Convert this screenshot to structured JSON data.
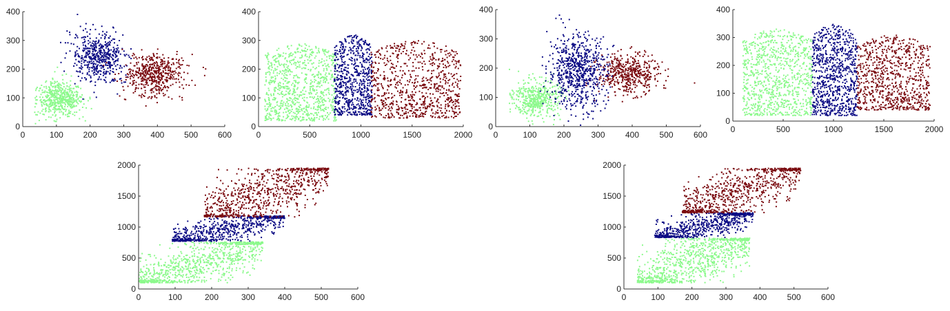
{
  "figure": {
    "background": "#ffffff"
  },
  "colors": {
    "green": "#8cf98c",
    "blue": "#0a0a84",
    "red": "#7a0a0f",
    "gray": "#c8d0c8"
  },
  "chart_data": [
    {
      "type": "scatter",
      "id": "c1",
      "xlim": [
        0,
        600
      ],
      "ylim": [
        0,
        400
      ],
      "xticks": [
        0,
        100,
        200,
        300,
        400,
        500,
        600
      ],
      "yticks": [
        0,
        100,
        200,
        300,
        400
      ],
      "clusters": [
        {
          "color": "green",
          "shape": "blob",
          "cx": 110,
          "cy": 95,
          "rx": 75,
          "ry": 65,
          "n": 520,
          "xmin": 35
        },
        {
          "color": "blue",
          "shape": "blob",
          "cx": 225,
          "cy": 240,
          "rx": 90,
          "ry": 95,
          "n": 520
        },
        {
          "color": "red",
          "shape": "blob",
          "cx": 390,
          "cy": 180,
          "rx": 100,
          "ry": 80,
          "n": 520
        }
      ]
    },
    {
      "type": "scatter",
      "id": "c2",
      "xlim": [
        0,
        2000
      ],
      "ylim": [
        0,
        400
      ],
      "xticks": [
        0,
        500,
        1000,
        1500,
        2000
      ],
      "yticks": [
        0,
        100,
        200,
        300,
        400
      ],
      "clusters": [
        {
          "color": "green",
          "shape": "band",
          "x0": 60,
          "x1": 760,
          "ybot": 20,
          "ytop": 290,
          "n": 900
        },
        {
          "color": "blue",
          "shape": "band",
          "x0": 740,
          "x1": 1110,
          "ybot": 40,
          "ytop": 320,
          "n": 700
        },
        {
          "color": "red",
          "shape": "band",
          "x0": 1100,
          "x1": 1980,
          "ybot": 30,
          "ytop": 300,
          "n": 800
        }
      ]
    },
    {
      "type": "scatter",
      "id": "c3",
      "xlim": [
        0,
        600
      ],
      "ylim": [
        0,
        400
      ],
      "xticks": [
        0,
        100,
        200,
        300,
        400,
        500,
        600
      ],
      "yticks": [
        0,
        100,
        200,
        300,
        400
      ],
      "clusters": [
        {
          "color": "green",
          "shape": "blob",
          "cx": 120,
          "cy": 95,
          "rx": 75,
          "ry": 70,
          "n": 480,
          "xmin": 40
        },
        {
          "color": "red",
          "shape": "blob",
          "cx": 390,
          "cy": 180,
          "rx": 100,
          "ry": 75,
          "n": 480
        },
        {
          "color": "blue",
          "shape": "blob",
          "cx": 240,
          "cy": 190,
          "rx": 95,
          "ry": 140,
          "n": 700
        }
      ]
    },
    {
      "type": "scatter",
      "id": "c4",
      "xlim": [
        0,
        2000
      ],
      "ylim": [
        0,
        400
      ],
      "xticks": [
        0,
        500,
        1000,
        1500,
        2000
      ],
      "yticks": [
        0,
        100,
        200,
        300,
        400
      ],
      "clusters": [
        {
          "color": "green",
          "shape": "band",
          "x0": 100,
          "x1": 790,
          "ybot": 20,
          "ytop": 330,
          "n": 900
        },
        {
          "color": "blue",
          "shape": "band",
          "x0": 790,
          "x1": 1235,
          "ybot": 20,
          "ytop": 350,
          "n": 800
        },
        {
          "color": "red",
          "shape": "band",
          "x0": 1235,
          "x1": 1960,
          "ybot": 40,
          "ytop": 310,
          "n": 800
        }
      ]
    },
    {
      "type": "scatter",
      "id": "c5",
      "xlim": [
        0,
        600
      ],
      "ylim": [
        0,
        2000
      ],
      "xticks": [
        0,
        100,
        200,
        300,
        400,
        500,
        600
      ],
      "yticks": [
        0,
        500,
        1000,
        1500,
        2000
      ],
      "clusters": [
        {
          "color": "green",
          "shape": "para",
          "x0": 0,
          "x1": 340,
          "ylo": 100,
          "yhi": 760,
          "slope": 2.2,
          "n": 900
        },
        {
          "color": "blue",
          "shape": "para",
          "x0": 90,
          "x1": 400,
          "ylo": 770,
          "yhi": 1180,
          "slope": 1.6,
          "n": 700
        },
        {
          "color": "red",
          "shape": "para",
          "x0": 180,
          "x1": 520,
          "ylo": 1160,
          "yhi": 1950,
          "slope": 2.4,
          "n": 800
        }
      ]
    },
    {
      "type": "scatter",
      "id": "c6",
      "xlim": [
        0,
        600
      ],
      "ylim": [
        0,
        2000
      ],
      "xticks": [
        0,
        100,
        200,
        300,
        400,
        500,
        600
      ],
      "yticks": [
        0,
        500,
        1000,
        1500,
        2000
      ],
      "clusters": [
        {
          "color": "green",
          "shape": "para",
          "x0": 40,
          "x1": 370,
          "ylo": 100,
          "yhi": 820,
          "slope": 2.2,
          "n": 900
        },
        {
          "color": "blue",
          "shape": "para",
          "x0": 90,
          "x1": 380,
          "ylo": 830,
          "yhi": 1230,
          "slope": 1.8,
          "n": 700
        },
        {
          "color": "red",
          "shape": "para",
          "x0": 170,
          "x1": 520,
          "ylo": 1230,
          "yhi": 1950,
          "slope": 2.4,
          "n": 800
        }
      ]
    }
  ]
}
